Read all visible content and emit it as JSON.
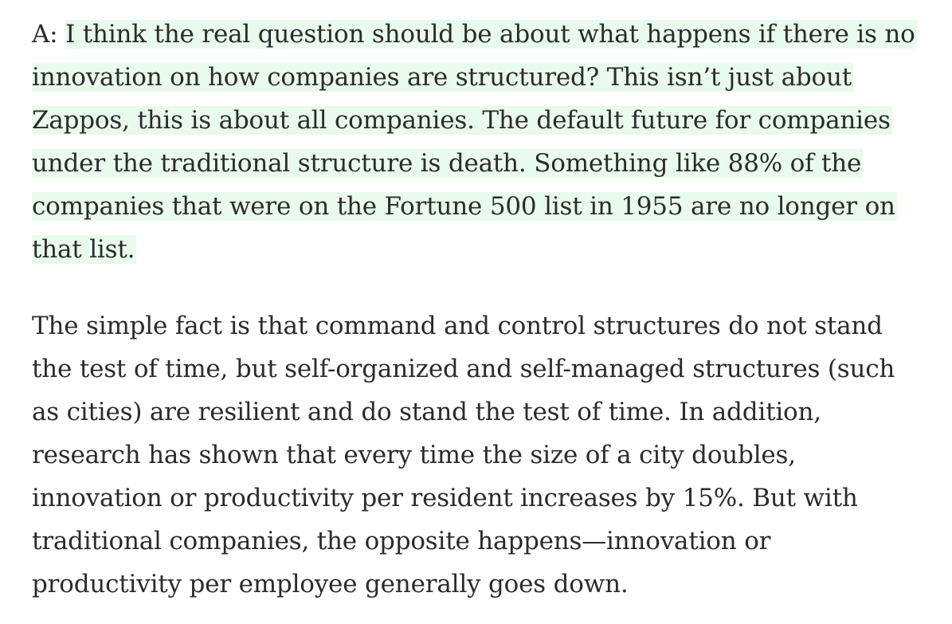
{
  "article": {
    "answer_prefix": "A: ",
    "highlighted_lines": [
      "I think the real question should be about what happens if there is no",
      "innovation on how companies are structured? This isn’t just about",
      "Zappos, this is about all companies. The default future for companies",
      "under the traditional structure is death. Something like 88% of the",
      "companies that were on the Fortune 500 list in 1955 are no longer on",
      "that list."
    ],
    "paragraph2_lines": [
      "The simple fact is that command and control structures do not stand",
      "the test of time, but self-organized and self-managed structures (such",
      "as cities) are resilient and do stand the test of time. In addition,",
      "research has shown that every time the size of a city doubles,",
      "innovation or productivity per resident increases by 15%. But with",
      "traditional companies, the opposite happens—innovation or",
      "productivity per employee generally goes down."
    ],
    "highlight_color": "#e9fbec",
    "text_color": "#2b2b2b"
  }
}
